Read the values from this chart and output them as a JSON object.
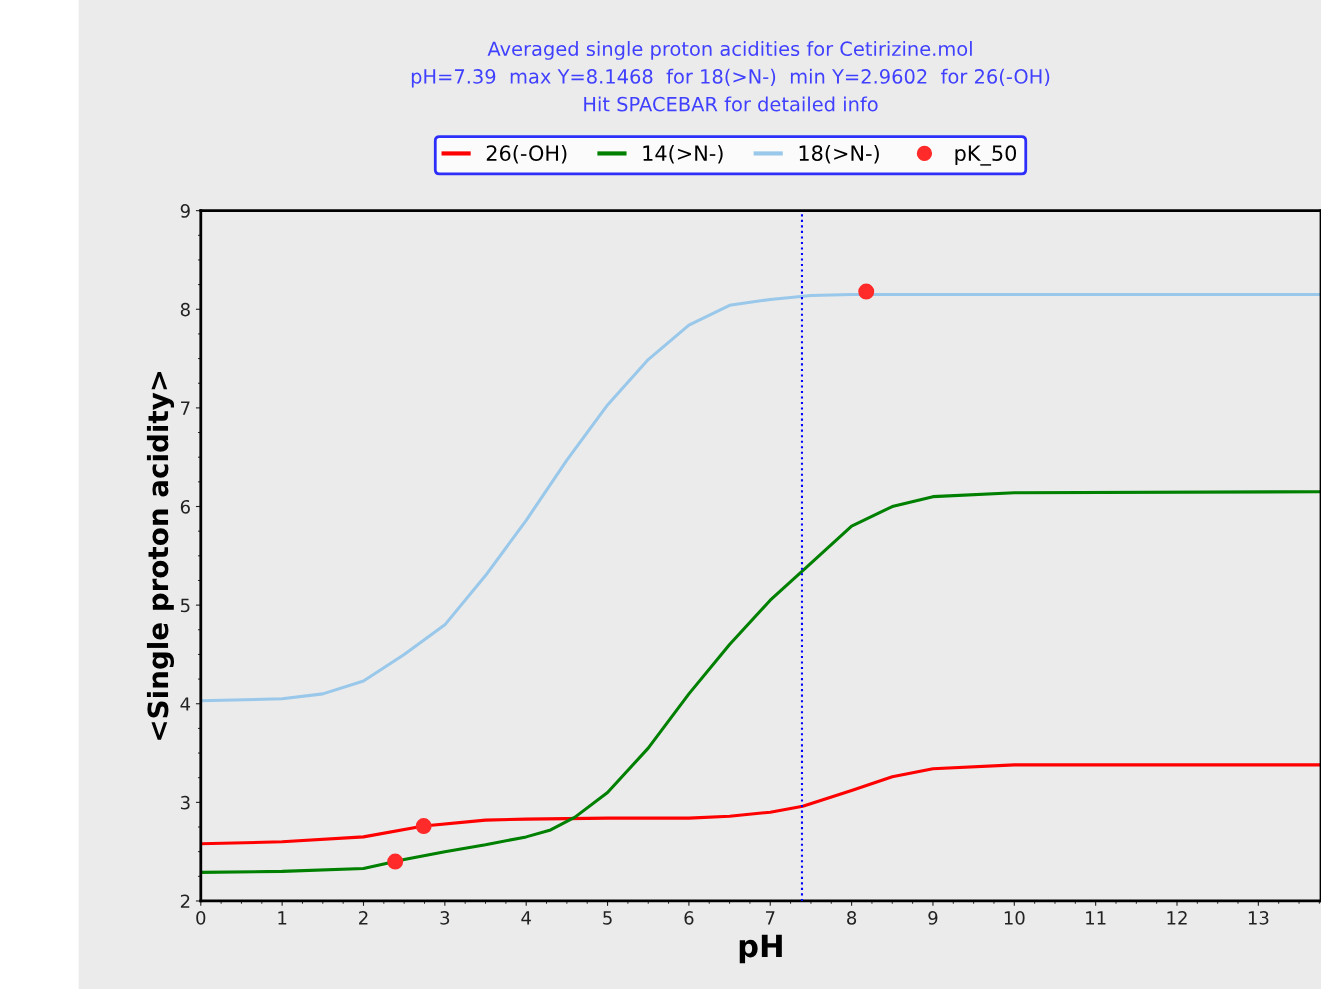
{
  "chart_data": {
    "type": "line",
    "title": "Averaged single proton acidities for Cetirizine.mol",
    "subtitle": "pH=7.39  max Y=8.1468  for 18(>N-)  min Y=2.9602  for 26(-OH)",
    "annotations": [
      "Hit SPACEBAR for detailed info"
    ],
    "xlabel": "pH",
    "ylabel": "<Single proton acidity>",
    "xlim": [
      0,
      13.77
    ],
    "ylim": [
      2,
      9
    ],
    "xticks": [
      0,
      1,
      2,
      3,
      4,
      5,
      6,
      7,
      8,
      9,
      10,
      11,
      12,
      13
    ],
    "yticks": [
      2,
      3,
      4,
      5,
      6,
      7,
      8,
      9
    ],
    "grid": false,
    "legend": "top",
    "marker": "none",
    "line_style": "solid",
    "series": [
      {
        "name": "26(-OH)",
        "color": "#ff0000",
        "x": [
          0,
          1,
          2,
          2.74,
          3.5,
          4,
          5,
          6,
          6.5,
          7,
          7.4,
          8,
          8.5,
          9,
          10,
          13.77
        ],
        "values": [
          2.58,
          2.6,
          2.65,
          2.76,
          2.82,
          2.83,
          2.84,
          2.84,
          2.86,
          2.9,
          2.96,
          3.12,
          3.26,
          3.34,
          3.38,
          3.38
        ]
      },
      {
        "name": "14(>N-)",
        "color": "#008000",
        "x": [
          0,
          1,
          2,
          2.5,
          3,
          3.5,
          4,
          4.3,
          4.6,
          5,
          5.5,
          6,
          6.5,
          7,
          7.4,
          8,
          8.5,
          9,
          10,
          13.77
        ],
        "values": [
          2.29,
          2.3,
          2.33,
          2.42,
          2.5,
          2.57,
          2.65,
          2.72,
          2.85,
          3.1,
          3.55,
          4.1,
          4.6,
          5.05,
          5.35,
          5.8,
          6.0,
          6.1,
          6.14,
          6.15
        ]
      },
      {
        "name": "18(>N-)",
        "color": "#99c8ea",
        "x": [
          0,
          1,
          1.5,
          2,
          2.5,
          3,
          3.5,
          4,
          4.5,
          5,
          5.5,
          6,
          6.5,
          7,
          7.5,
          8,
          13.77
        ],
        "values": [
          4.03,
          4.05,
          4.1,
          4.23,
          4.5,
          4.8,
          5.3,
          5.86,
          6.47,
          7.03,
          7.49,
          7.84,
          8.04,
          8.1,
          8.14,
          8.15,
          8.15
        ]
      },
      {
        "name": "pK_50",
        "type": "scatter",
        "color": "#ff2a2a",
        "marker": "circle",
        "x": [
          2.39,
          2.74,
          8.18
        ],
        "values": [
          2.4,
          2.76,
          8.18
        ]
      }
    ],
    "ref_lines": [
      {
        "axis": "x",
        "value": 7.39,
        "color": "#0000ff",
        "line_style": "dotted"
      }
    ]
  }
}
